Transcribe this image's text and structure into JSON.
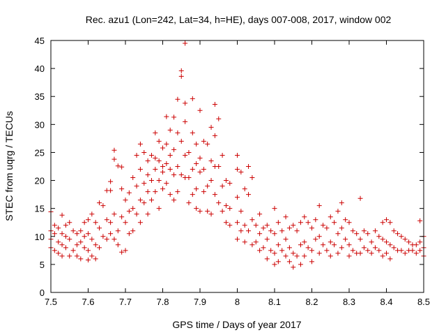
{
  "chart_data": {
    "type": "scatter",
    "title": "Rec. azu1 (Lon=242, Lat=34, h=HE), days 007-008, 2017, window 002",
    "xlabel": "GPS time / Days of year 2017",
    "ylabel": "STEC from uqrg / TECUs",
    "xlim": [
      7.5,
      8.5
    ],
    "ylim": [
      0,
      45
    ],
    "x_ticks": [
      7.5,
      7.6,
      7.7,
      7.8,
      7.9,
      8.0,
      8.1,
      8.2,
      8.3,
      8.4,
      8.5
    ],
    "x_tick_labels": [
      "7.5",
      "7.6",
      "7.7",
      "7.8",
      "7.9",
      "8",
      "8.1",
      "8.2",
      "8.3",
      "8.4",
      "8.5"
    ],
    "y_ticks": [
      0,
      5,
      10,
      15,
      20,
      25,
      30,
      35,
      40,
      45
    ],
    "y_tick_labels": [
      "0",
      "5",
      "10",
      "15",
      "20",
      "25",
      "30",
      "35",
      "40",
      "45"
    ],
    "marker": "+",
    "color": "#cc0000",
    "series": [
      {
        "name": "STEC",
        "points": [
          [
            7.5,
            14.4
          ],
          [
            7.5,
            11.0
          ],
          [
            7.5,
            9.5
          ],
          [
            7.5,
            8.0
          ],
          [
            7.51,
            12.0
          ],
          [
            7.51,
            10.5
          ],
          [
            7.51,
            7.5
          ],
          [
            7.52,
            11.5
          ],
          [
            7.52,
            9.0
          ],
          [
            7.52,
            7.0
          ],
          [
            7.53,
            13.8
          ],
          [
            7.53,
            10.5
          ],
          [
            7.53,
            8.5
          ],
          [
            7.53,
            6.5
          ],
          [
            7.54,
            12.0
          ],
          [
            7.54,
            10.0
          ],
          [
            7.54,
            8.0
          ],
          [
            7.55,
            12.5
          ],
          [
            7.55,
            9.5
          ],
          [
            7.55,
            6.5
          ],
          [
            7.56,
            11.0
          ],
          [
            7.56,
            7.5
          ],
          [
            7.57,
            10.5
          ],
          [
            7.57,
            8.5
          ],
          [
            7.57,
            6.5
          ],
          [
            7.58,
            11.0
          ],
          [
            7.58,
            9.0
          ],
          [
            7.58,
            6.0
          ],
          [
            7.59,
            12.5
          ],
          [
            7.59,
            10.0
          ],
          [
            7.59,
            8.0
          ],
          [
            7.6,
            13.0
          ],
          [
            7.6,
            10.5
          ],
          [
            7.6,
            7.5
          ],
          [
            7.6,
            5.8
          ],
          [
            7.61,
            14.0
          ],
          [
            7.61,
            9.5
          ],
          [
            7.61,
            6.5
          ],
          [
            7.62,
            12.5
          ],
          [
            7.62,
            8.5
          ],
          [
            7.62,
            6.0
          ],
          [
            7.63,
            16.0
          ],
          [
            7.63,
            11.5
          ],
          [
            7.63,
            8.0
          ],
          [
            7.64,
            15.5
          ],
          [
            7.64,
            10.0
          ],
          [
            7.65,
            18.2
          ],
          [
            7.65,
            13.0
          ],
          [
            7.65,
            9.5
          ],
          [
            7.66,
            19.8
          ],
          [
            7.66,
            12.5
          ],
          [
            7.66,
            10.5
          ],
          [
            7.66,
            18.2
          ],
          [
            7.67,
            25.4
          ],
          [
            7.67,
            23.8
          ],
          [
            7.67,
            14.0
          ],
          [
            7.67,
            9.5
          ],
          [
            7.68,
            22.6
          ],
          [
            7.68,
            11.0
          ],
          [
            7.68,
            8.5
          ],
          [
            7.69,
            22.4
          ],
          [
            7.69,
            18.5
          ],
          [
            7.69,
            13.5
          ],
          [
            7.69,
            7.2
          ],
          [
            7.7,
            16.5
          ],
          [
            7.7,
            12.5
          ],
          [
            7.7,
            7.5
          ],
          [
            7.71,
            17.8
          ],
          [
            7.71,
            14.5
          ],
          [
            7.71,
            10.5
          ],
          [
            7.72,
            20.5
          ],
          [
            7.72,
            15.0
          ],
          [
            7.72,
            11.0
          ],
          [
            7.73,
            24.5
          ],
          [
            7.73,
            19.0
          ],
          [
            7.73,
            14.0
          ],
          [
            7.74,
            26.5
          ],
          [
            7.74,
            22.0
          ],
          [
            7.74,
            16.5
          ],
          [
            7.74,
            12.5
          ],
          [
            7.75,
            25.0
          ],
          [
            7.75,
            19.5
          ],
          [
            7.75,
            16.0
          ],
          [
            7.76,
            23.5
          ],
          [
            7.76,
            21.0
          ],
          [
            7.76,
            18.0
          ],
          [
            7.76,
            14.0
          ],
          [
            7.77,
            24.5
          ],
          [
            7.77,
            20.0
          ],
          [
            7.77,
            16.5
          ],
          [
            7.78,
            28.5
          ],
          [
            7.78,
            24.0
          ],
          [
            7.78,
            22.0
          ],
          [
            7.78,
            18.0
          ],
          [
            7.79,
            27.0
          ],
          [
            7.79,
            23.5
          ],
          [
            7.79,
            20.0
          ],
          [
            7.79,
            15.0
          ],
          [
            7.8,
            25.8
          ],
          [
            7.8,
            22.5
          ],
          [
            7.8,
            21.5
          ],
          [
            7.8,
            18.5
          ],
          [
            7.81,
            31.4
          ],
          [
            7.81,
            26.5
          ],
          [
            7.81,
            23.0
          ],
          [
            7.81,
            19.5
          ],
          [
            7.82,
            29.0
          ],
          [
            7.82,
            24.5
          ],
          [
            7.82,
            22.0
          ],
          [
            7.82,
            17.5
          ],
          [
            7.83,
            31.3
          ],
          [
            7.83,
            25.5
          ],
          [
            7.83,
            21.0
          ],
          [
            7.83,
            16.5
          ],
          [
            7.84,
            34.5
          ],
          [
            7.84,
            28.5
          ],
          [
            7.84,
            22.5
          ],
          [
            7.84,
            18.0
          ],
          [
            7.85,
            39.6
          ],
          [
            7.85,
            38.6
          ],
          [
            7.85,
            27.0
          ],
          [
            7.85,
            21.0
          ],
          [
            7.86,
            44.5
          ],
          [
            7.86,
            33.8
          ],
          [
            7.86,
            30.5
          ],
          [
            7.86,
            24.5
          ],
          [
            7.86,
            20.5
          ],
          [
            7.87,
            25.0
          ],
          [
            7.87,
            20.5
          ],
          [
            7.87,
            16.0
          ],
          [
            7.88,
            34.6
          ],
          [
            7.88,
            28.5
          ],
          [
            7.88,
            22.0
          ],
          [
            7.88,
            17.5
          ],
          [
            7.89,
            26.5
          ],
          [
            7.89,
            23.0
          ],
          [
            7.89,
            18.5
          ],
          [
            7.89,
            15.0
          ],
          [
            7.9,
            32.5
          ],
          [
            7.9,
            24.0
          ],
          [
            7.9,
            21.5
          ],
          [
            7.9,
            14.5
          ],
          [
            7.91,
            27.0
          ],
          [
            7.91,
            22.0
          ],
          [
            7.91,
            18.0
          ],
          [
            7.92,
            26.5
          ],
          [
            7.92,
            19.0
          ],
          [
            7.92,
            14.5
          ],
          [
            7.93,
            29.5
          ],
          [
            7.93,
            23.5
          ],
          [
            7.93,
            20.0
          ],
          [
            7.93,
            14.0
          ],
          [
            7.94,
            33.6
          ],
          [
            7.94,
            28.0
          ],
          [
            7.94,
            22.5
          ],
          [
            7.94,
            17.5
          ],
          [
            7.95,
            31.0
          ],
          [
            7.95,
            22.5
          ],
          [
            7.95,
            16.0
          ],
          [
            7.96,
            24.5
          ],
          [
            7.96,
            19.0
          ],
          [
            7.96,
            14.5
          ],
          [
            7.97,
            20.0
          ],
          [
            7.97,
            15.5
          ],
          [
            7.97,
            12.5
          ],
          [
            7.98,
            19.5
          ],
          [
            7.98,
            15.0
          ],
          [
            7.98,
            12.0
          ],
          [
            8.0,
            24.5
          ],
          [
            8.0,
            22.0
          ],
          [
            8.0,
            17.0
          ],
          [
            8.0,
            12.5
          ],
          [
            8.0,
            9.5
          ],
          [
            8.01,
            21.5
          ],
          [
            8.01,
            14.5
          ],
          [
            8.01,
            11.0
          ],
          [
            8.02,
            18.5
          ],
          [
            8.02,
            12.0
          ],
          [
            8.02,
            9.0
          ],
          [
            8.03,
            22.5
          ],
          [
            8.03,
            17.5
          ],
          [
            8.03,
            11.0
          ],
          [
            8.04,
            20.5
          ],
          [
            8.04,
            13.0
          ],
          [
            8.04,
            8.5
          ],
          [
            8.05,
            12.0
          ],
          [
            8.05,
            9.0
          ],
          [
            8.06,
            14.0
          ],
          [
            8.06,
            10.5
          ],
          [
            8.06,
            7.5
          ],
          [
            8.07,
            11.5
          ],
          [
            8.07,
            8.0
          ],
          [
            8.08,
            12.0
          ],
          [
            8.08,
            9.5
          ],
          [
            8.08,
            6.0
          ],
          [
            8.09,
            11.0
          ],
          [
            8.09,
            7.5
          ],
          [
            8.1,
            15.0
          ],
          [
            8.1,
            10.5
          ],
          [
            8.1,
            7.0
          ],
          [
            8.1,
            5.0
          ],
          [
            8.11,
            12.5
          ],
          [
            8.11,
            8.5
          ],
          [
            8.11,
            5.5
          ],
          [
            8.12,
            11.0
          ],
          [
            8.12,
            7.5
          ],
          [
            8.13,
            13.5
          ],
          [
            8.13,
            9.5
          ],
          [
            8.13,
            6.5
          ],
          [
            8.14,
            11.5
          ],
          [
            8.14,
            8.0
          ],
          [
            8.14,
            5.5
          ],
          [
            8.15,
            12.0
          ],
          [
            8.15,
            7.0
          ],
          [
            8.15,
            4.5
          ],
          [
            8.16,
            11.0
          ],
          [
            8.16,
            6.5
          ],
          [
            8.17,
            12.5
          ],
          [
            8.17,
            8.5
          ],
          [
            8.17,
            5.0
          ],
          [
            8.18,
            13.5
          ],
          [
            8.18,
            9.0
          ],
          [
            8.18,
            6.5
          ],
          [
            8.19,
            12.5
          ],
          [
            8.19,
            8.0
          ],
          [
            8.2,
            11.5
          ],
          [
            8.2,
            7.5
          ],
          [
            8.2,
            5.5
          ],
          [
            8.21,
            13.0
          ],
          [
            8.21,
            9.5
          ],
          [
            8.22,
            15.5
          ],
          [
            8.22,
            10.0
          ],
          [
            8.22,
            7.0
          ],
          [
            8.23,
            12.0
          ],
          [
            8.23,
            8.5
          ],
          [
            8.24,
            11.5
          ],
          [
            8.24,
            7.5
          ],
          [
            8.25,
            13.5
          ],
          [
            8.25,
            9.0
          ],
          [
            8.25,
            6.5
          ],
          [
            8.26,
            12.5
          ],
          [
            8.26,
            8.5
          ],
          [
            8.27,
            14.5
          ],
          [
            8.27,
            10.5
          ],
          [
            8.27,
            7.0
          ],
          [
            8.28,
            16.0
          ],
          [
            8.28,
            11.5
          ],
          [
            8.28,
            8.0
          ],
          [
            8.29,
            13.0
          ],
          [
            8.29,
            9.5
          ],
          [
            8.3,
            12.5
          ],
          [
            8.3,
            8.5
          ],
          [
            8.3,
            6.5
          ],
          [
            8.31,
            11.0
          ],
          [
            8.31,
            7.5
          ],
          [
            8.32,
            10.5
          ],
          [
            8.32,
            7.0
          ],
          [
            8.33,
            16.8
          ],
          [
            8.33,
            9.5
          ],
          [
            8.33,
            7.0
          ],
          [
            8.34,
            11.0
          ],
          [
            8.34,
            8.0
          ],
          [
            8.35,
            10.5
          ],
          [
            8.35,
            7.5
          ],
          [
            8.36,
            9.0
          ],
          [
            8.36,
            7.0
          ],
          [
            8.37,
            11.0
          ],
          [
            8.37,
            8.0
          ],
          [
            8.38,
            10.0
          ],
          [
            8.38,
            7.5
          ],
          [
            8.39,
            12.5
          ],
          [
            8.39,
            9.5
          ],
          [
            8.39,
            6.5
          ],
          [
            8.4,
            13.0
          ],
          [
            8.4,
            9.0
          ],
          [
            8.4,
            7.0
          ],
          [
            8.41,
            12.5
          ],
          [
            8.41,
            8.5
          ],
          [
            8.41,
            6.0
          ],
          [
            8.42,
            11.0
          ],
          [
            8.42,
            8.0
          ],
          [
            8.43,
            10.5
          ],
          [
            8.43,
            7.5
          ],
          [
            8.44,
            10.0
          ],
          [
            8.44,
            7.5
          ],
          [
            8.45,
            9.5
          ],
          [
            8.45,
            7.0
          ],
          [
            8.46,
            9.0
          ],
          [
            8.46,
            7.5
          ],
          [
            8.47,
            8.5
          ],
          [
            8.47,
            7.5
          ],
          [
            8.48,
            8.5
          ],
          [
            8.48,
            7.0
          ],
          [
            8.49,
            12.8
          ],
          [
            8.49,
            9.0
          ],
          [
            8.49,
            7.5
          ],
          [
            8.5,
            10.0
          ],
          [
            8.5,
            8.0
          ],
          [
            8.5,
            6.5
          ]
        ]
      }
    ]
  }
}
